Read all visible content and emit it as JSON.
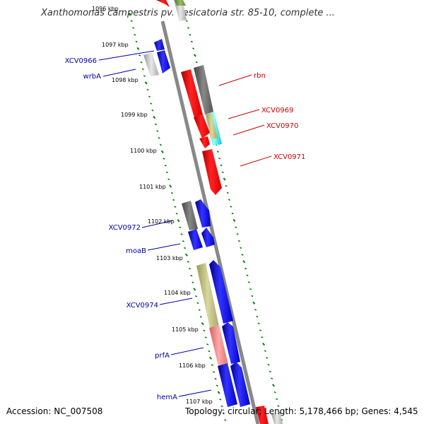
{
  "title": "Xanthomonas campestris pv. vesicatoria str. 85-10, complete ...",
  "footer": {
    "accession": "Accession: NC_007508",
    "topology": "Topology: circular; Length: 5,178,466 bp; Genes: 4,545"
  },
  "colors": {
    "forward_gene": "#0000ff",
    "reverse_gene": "#ff0000",
    "forward_label": "#0000aa",
    "reverse_label": "#cc0000",
    "backbone": "#888888",
    "tick": "#008000"
  },
  "kbp_ticks": [
    {
      "label": "1096 kbp"
    },
    {
      "label": "1097 kbp"
    },
    {
      "label": "1098 kbp"
    },
    {
      "label": "1099 kbp"
    },
    {
      "label": "1100 kbp"
    },
    {
      "label": "1101 kbp"
    },
    {
      "label": "1102 kbp"
    },
    {
      "label": "1103 kbp"
    },
    {
      "label": "1104 kbp"
    },
    {
      "label": "1105 kbp"
    },
    {
      "label": "1106 kbp"
    },
    {
      "label": "1107 kbp"
    }
  ],
  "gene_labels": [
    {
      "name": "XCV0966",
      "strand": "forward"
    },
    {
      "name": "wrbA",
      "strand": "forward"
    },
    {
      "name": "rbn",
      "strand": "reverse"
    },
    {
      "name": "XCV0969",
      "strand": "reverse"
    },
    {
      "name": "XCV0970",
      "strand": "reverse"
    },
    {
      "name": "XCV0971",
      "strand": "reverse"
    },
    {
      "name": "XCV0972",
      "strand": "forward"
    },
    {
      "name": "moaB",
      "strand": "forward"
    },
    {
      "name": "XCV0974",
      "strand": "forward"
    },
    {
      "name": "prfA",
      "strand": "forward"
    },
    {
      "name": "hemA",
      "strand": "forward"
    }
  ]
}
